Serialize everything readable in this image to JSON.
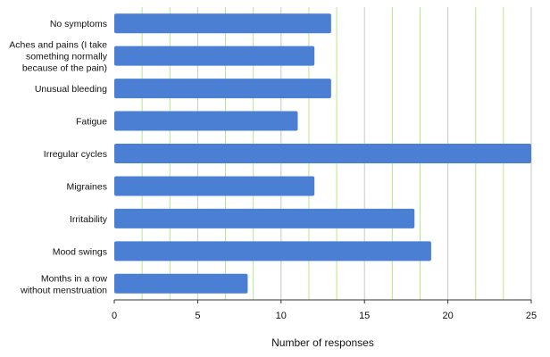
{
  "chart_data": {
    "type": "bar",
    "orientation": "horizontal",
    "categories": [
      "No symptoms",
      "Aches and pains (I take something normally because of the pain)",
      "Unusual bleeding",
      "Fatigue",
      "Irregular cycles",
      "Migraines",
      "Irritability",
      "Mood swings",
      "Months in a row without menstruation"
    ],
    "category_label_lines": [
      [
        "No symptoms"
      ],
      [
        "Aches and pains (I take",
        "something normally",
        "because of the pain)"
      ],
      [
        "Unusual bleeding"
      ],
      [
        "Fatigue"
      ],
      [
        "Irregular cycles"
      ],
      [
        "Migraines"
      ],
      [
        "Irritability"
      ],
      [
        "Mood swings"
      ],
      [
        "Months in a row",
        "without menstruation"
      ]
    ],
    "values": [
      13,
      12,
      13,
      11,
      25,
      12,
      18,
      19,
      8
    ],
    "xlabel": "Number of responses",
    "ylabel": "",
    "xlim": [
      0,
      25
    ],
    "xticks": [
      "0",
      "5",
      "10",
      "15",
      "20",
      "25"
    ],
    "grid": true,
    "colors": {
      "bar": "#4a7fd4",
      "grid_major": "#c8c8c8",
      "grid_minor": "#b8e68c",
      "axis": "#333333"
    }
  }
}
